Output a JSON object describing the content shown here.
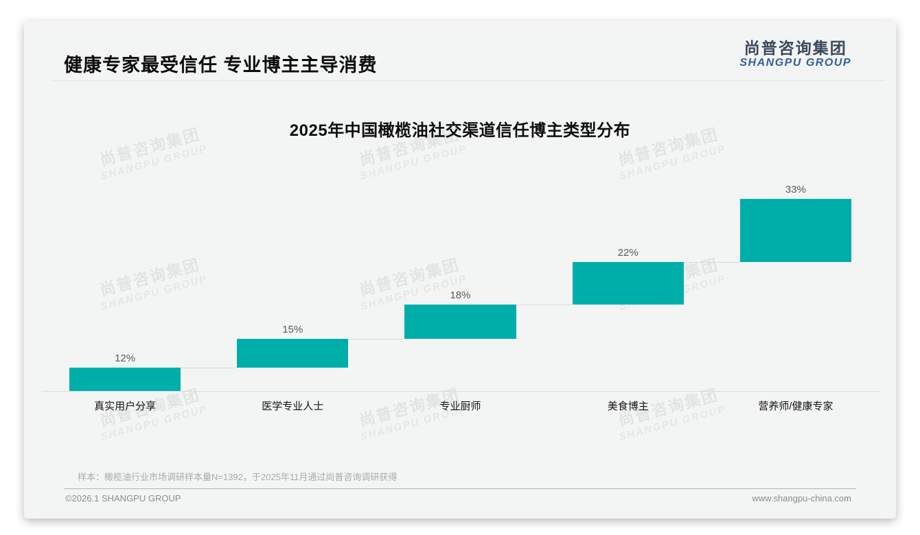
{
  "header": {
    "title": "健康专家最受信任 专业博主主导消费",
    "logo_zh": "尚普咨询集团",
    "logo_en": "SHANGPU GROUP"
  },
  "watermark": {
    "zh": "尚普咨询集团",
    "en": "SHANGPU GROUP"
  },
  "chart_data": {
    "type": "bar",
    "subtype": "waterfall-step",
    "title": "2025年中国橄榄油社交渠道信任博主类型分布",
    "categories": [
      "真实用户分享",
      "医学专业人士",
      "专业厨师",
      "美食博主",
      "营养师/健康专家"
    ],
    "values": [
      12,
      15,
      18,
      22,
      33
    ],
    "value_labels": [
      "12%",
      "15%",
      "18%",
      "22%",
      "33%"
    ],
    "cumulative_start": [
      0,
      12,
      27,
      45,
      67
    ],
    "unit": "%",
    "ylim": [
      0,
      100
    ],
    "bar_color": "#00AEA9",
    "grid": false,
    "legend": "none",
    "xlabel": "",
    "ylabel": ""
  },
  "footnote": "样本：橄榄油行业市场调研样本量N=1392，于2025年11月通过尚普咨询调研获得",
  "footer": {
    "left": "©2026.1 SHANGPU GROUP",
    "right": "www.shangpu-china.com"
  }
}
